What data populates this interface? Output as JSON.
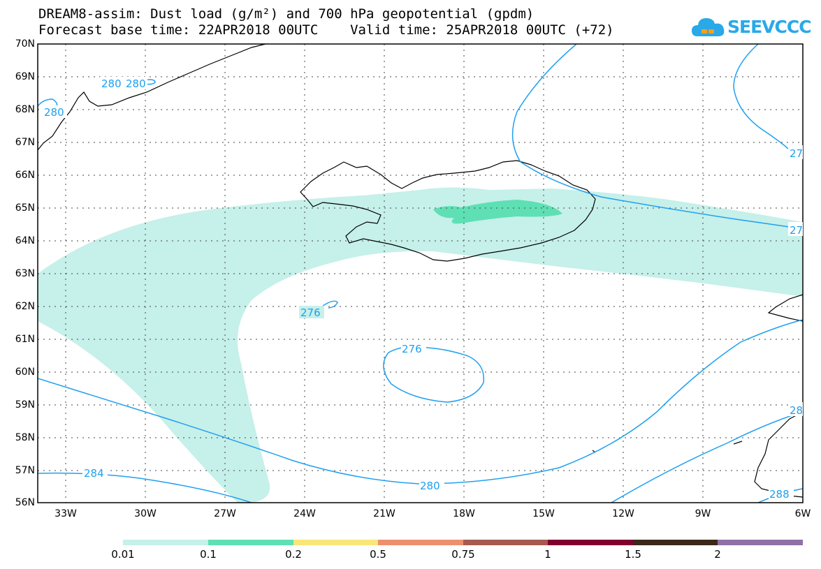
{
  "title": {
    "line1": "DREAM8-assim: Dust load (g/m²) and 700 hPa geopotential (gpdm)",
    "line2": "Forecast base time: 22APR2018 00UTC    Valid time: 25APR2018 00UTC (+72)"
  },
  "logo": {
    "text": "SEEVCCC"
  },
  "map": {
    "lat_labels": [
      "70N",
      "69N",
      "68N",
      "67N",
      "66N",
      "65N",
      "64N",
      "63N",
      "62N",
      "61N",
      "60N",
      "59N",
      "58N",
      "57N",
      "56N"
    ],
    "lon_labels": [
      "33W",
      "30W",
      "27W",
      "24W",
      "21W",
      "18W",
      "15W",
      "12W",
      "9W",
      "6W"
    ],
    "contour_labels": {
      "c280_a": "280",
      "c280_b": "280",
      "c280_c": "280",
      "c276_a": "276",
      "c276_b": "276",
      "c280_d": "280",
      "c284": "284",
      "c27_a": "27",
      "c27_b": "27",
      "c28": "28",
      "c288": "288"
    },
    "colors": {
      "dust_low": "#c6f0ea",
      "dust_mid": "#5ee0b4",
      "contour": "#1ea0f0",
      "coast": "#000000"
    }
  },
  "colorbar": {
    "labels": [
      "0.01",
      "0.1",
      "0.2",
      "0.5",
      "0.75",
      "1",
      "1.5",
      "2"
    ],
    "colors": [
      "#c6f0ea",
      "#5ee0b4",
      "#f8e67a",
      "#ec9070",
      "#a85a50",
      "#800030",
      "#3c2818",
      "#9070a8"
    ]
  }
}
